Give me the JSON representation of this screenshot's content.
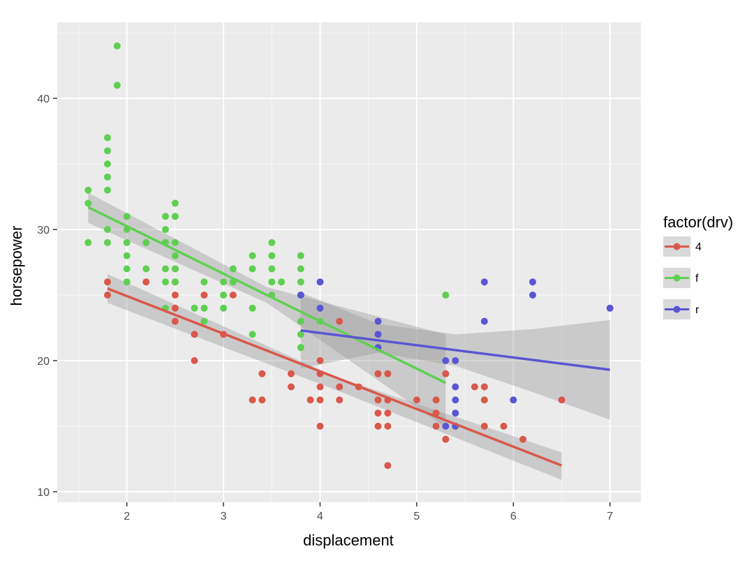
{
  "chart_data": {
    "type": "scatter",
    "title": "",
    "xlabel": "displacement",
    "ylabel": "horsepower",
    "xlim": [
      1.28,
      7.32
    ],
    "ylim": [
      9.2,
      45.8
    ],
    "x_ticks": [
      2,
      3,
      4,
      5,
      6,
      7
    ],
    "y_ticks": [
      10,
      20,
      30,
      40
    ],
    "x_tick_labels": [
      "2",
      "3",
      "4",
      "5",
      "6",
      "7"
    ],
    "y_tick_labels": [
      "10",
      "20",
      "30",
      "40"
    ],
    "grid": true,
    "legend": {
      "title": "factor(drv)",
      "placement": "right",
      "entries": [
        "4",
        "f",
        "r"
      ]
    },
    "series": [
      {
        "name": "4",
        "color": "#d9574b",
        "points": [
          [
            1.8,
            26
          ],
          [
            1.8,
            25
          ],
          [
            2.2,
            26
          ],
          [
            2.5,
            27
          ],
          [
            2.5,
            26
          ],
          [
            2.5,
            25
          ],
          [
            2.5,
            24
          ],
          [
            2.5,
            23
          ],
          [
            2.7,
            22
          ],
          [
            2.7,
            20
          ],
          [
            2.8,
            25
          ],
          [
            3.0,
            22
          ],
          [
            3.1,
            25
          ],
          [
            3.3,
            17
          ],
          [
            3.4,
            19
          ],
          [
            3.4,
            17
          ],
          [
            3.7,
            19
          ],
          [
            3.7,
            18
          ],
          [
            3.9,
            17
          ],
          [
            4.0,
            20
          ],
          [
            4.0,
            19
          ],
          [
            4.0,
            18
          ],
          [
            4.0,
            17
          ],
          [
            4.0,
            15
          ],
          [
            4.2,
            18
          ],
          [
            4.2,
            17
          ],
          [
            4.2,
            23
          ],
          [
            4.4,
            18
          ],
          [
            4.6,
            19
          ],
          [
            4.6,
            17
          ],
          [
            4.6,
            16
          ],
          [
            4.6,
            15
          ],
          [
            4.7,
            19
          ],
          [
            4.7,
            17
          ],
          [
            4.7,
            16
          ],
          [
            4.7,
            15
          ],
          [
            4.7,
            12
          ],
          [
            5.0,
            17
          ],
          [
            5.2,
            17
          ],
          [
            5.2,
            16
          ],
          [
            5.2,
            15
          ],
          [
            5.3,
            19
          ],
          [
            5.3,
            14
          ],
          [
            5.4,
            15
          ],
          [
            5.6,
            18
          ],
          [
            5.7,
            18
          ],
          [
            5.7,
            17
          ],
          [
            5.7,
            15
          ],
          [
            5.9,
            15
          ],
          [
            6.1,
            14
          ],
          [
            6.5,
            17
          ]
        ],
        "fit": {
          "x": [
            1.8,
            6.5
          ],
          "y": [
            25.5,
            12.0
          ]
        },
        "band": {
          "x": [
            1.8,
            4.15,
            6.5
          ],
          "upper": [
            26.6,
            18.8,
            13.0
          ],
          "lower": [
            24.4,
            17.8,
            10.9
          ]
        }
      },
      {
        "name": "f",
        "color": "#5fcf52",
        "points": [
          [
            1.6,
            33
          ],
          [
            1.6,
            32
          ],
          [
            1.6,
            29
          ],
          [
            1.8,
            37
          ],
          [
            1.8,
            36
          ],
          [
            1.8,
            35
          ],
          [
            1.8,
            34
          ],
          [
            1.8,
            33
          ],
          [
            1.8,
            30
          ],
          [
            1.8,
            29
          ],
          [
            1.9,
            44
          ],
          [
            1.9,
            41
          ],
          [
            2.0,
            31
          ],
          [
            2.0,
            30
          ],
          [
            2.0,
            29
          ],
          [
            2.0,
            28
          ],
          [
            2.0,
            27
          ],
          [
            2.0,
            26
          ],
          [
            2.2,
            29
          ],
          [
            2.2,
            27
          ],
          [
            2.4,
            31
          ],
          [
            2.4,
            30
          ],
          [
            2.4,
            29
          ],
          [
            2.4,
            27
          ],
          [
            2.4,
            26
          ],
          [
            2.4,
            24
          ],
          [
            2.5,
            32
          ],
          [
            2.5,
            31
          ],
          [
            2.5,
            29
          ],
          [
            2.5,
            28
          ],
          [
            2.5,
            27
          ],
          [
            2.5,
            26
          ],
          [
            2.7,
            24
          ],
          [
            2.8,
            26
          ],
          [
            2.8,
            24
          ],
          [
            2.8,
            23
          ],
          [
            3.0,
            26
          ],
          [
            3.0,
            25
          ],
          [
            3.0,
            24
          ],
          [
            3.1,
            27
          ],
          [
            3.1,
            26
          ],
          [
            3.3,
            28
          ],
          [
            3.3,
            27
          ],
          [
            3.3,
            24
          ],
          [
            3.3,
            22
          ],
          [
            3.5,
            29
          ],
          [
            3.5,
            28
          ],
          [
            3.5,
            27
          ],
          [
            3.5,
            26
          ],
          [
            3.5,
            25
          ],
          [
            3.6,
            26
          ],
          [
            3.8,
            28
          ],
          [
            3.8,
            27
          ],
          [
            3.8,
            26
          ],
          [
            3.8,
            25
          ],
          [
            3.8,
            23
          ],
          [
            3.8,
            22
          ],
          [
            3.8,
            21
          ],
          [
            4.0,
            23
          ],
          [
            5.3,
            25
          ]
        ],
        "fit": {
          "x": [
            1.6,
            5.3
          ],
          "y": [
            31.7,
            18.3
          ]
        },
        "band": {
          "x": [
            1.6,
            3.45,
            5.3
          ],
          "upper": [
            32.8,
            25.6,
            22.0
          ],
          "lower": [
            30.5,
            24.4,
            14.9
          ]
        }
      },
      {
        "name": "r",
        "color": "#5a55d4",
        "points": [
          [
            3.8,
            25
          ],
          [
            4.0,
            26
          ],
          [
            4.0,
            24
          ],
          [
            4.6,
            23
          ],
          [
            4.6,
            22
          ],
          [
            4.6,
            21
          ],
          [
            5.3,
            20
          ],
          [
            5.3,
            15
          ],
          [
            5.4,
            20
          ],
          [
            5.4,
            18
          ],
          [
            5.4,
            17
          ],
          [
            5.4,
            16
          ],
          [
            5.4,
            15
          ],
          [
            5.7,
            26
          ],
          [
            5.7,
            23
          ],
          [
            6.0,
            17
          ],
          [
            6.2,
            26
          ],
          [
            6.2,
            25
          ],
          [
            7.0,
            24
          ]
        ],
        "fit": {
          "x": [
            3.8,
            7.0
          ],
          "y": [
            22.3,
            19.3
          ]
        },
        "band": {
          "x": [
            3.8,
            4.6,
            5.4,
            6.2,
            7.0
          ],
          "upper": [
            25.2,
            22.8,
            22.0,
            22.4,
            23.1
          ],
          "lower": [
            19.4,
            20.6,
            19.6,
            17.6,
            15.5
          ]
        }
      }
    ]
  }
}
